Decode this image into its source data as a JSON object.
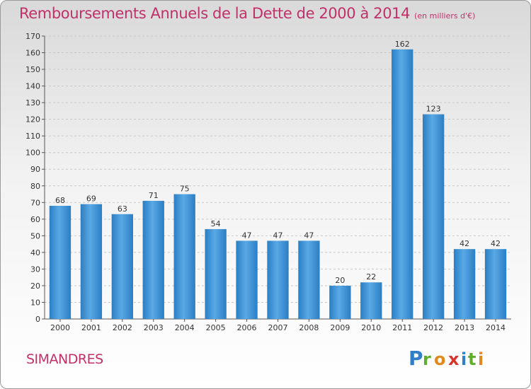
{
  "chart_data": {
    "type": "bar",
    "title": "Remboursements Annuels de la Dette de 2000 à 2014",
    "unit": "(en milliers d'€)",
    "categories": [
      "2000",
      "2001",
      "2002",
      "2003",
      "2004",
      "2005",
      "2006",
      "2007",
      "2008",
      "2009",
      "2010",
      "2011",
      "2012",
      "2013",
      "2014"
    ],
    "values": [
      68,
      69,
      63,
      71,
      75,
      54,
      47,
      47,
      47,
      20,
      22,
      162,
      123,
      42,
      42
    ],
    "ylim": [
      0,
      170
    ],
    "yticks": [
      0,
      10,
      20,
      30,
      40,
      50,
      60,
      70,
      80,
      90,
      100,
      110,
      120,
      130,
      140,
      150,
      160,
      170
    ],
    "grid": true,
    "bar_color": "#3f93d6"
  },
  "city": "SIMANDRES",
  "logo": {
    "text": "Proxiti",
    "letters": [
      "P",
      "r",
      "o",
      "x",
      "i",
      "t",
      "i"
    ]
  }
}
